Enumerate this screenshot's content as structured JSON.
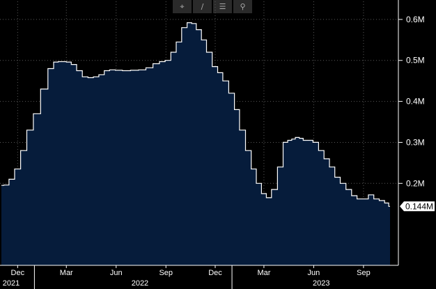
{
  "toolbar": {
    "tools": [
      {
        "name": "crosshair-icon",
        "glyph": "⌖"
      },
      {
        "name": "draw-line-icon",
        "glyph": "∕"
      },
      {
        "name": "legend-list-icon",
        "glyph": "☰"
      },
      {
        "name": "zoom-search-icon",
        "glyph": "⚲"
      }
    ]
  },
  "colors": {
    "background": "#000000",
    "area_fill": "#061c3b",
    "line": "#ffffff",
    "grid": "#5a5a5a",
    "text": "#ffffff"
  },
  "chart_data": {
    "type": "area",
    "x_start": "2021-11-01",
    "x_end": "2023-10-20",
    "ylim": [
      0,
      0.644
    ],
    "grid": true,
    "y_ticks": [
      {
        "value": 0.2,
        "label": "0.2M"
      },
      {
        "value": 0.3,
        "label": "0.3M"
      },
      {
        "value": 0.4,
        "label": "0.4M"
      },
      {
        "value": 0.5,
        "label": "0.5M"
      },
      {
        "value": 0.6,
        "label": "0.6M"
      }
    ],
    "x_ticks": [
      {
        "date": "2021-12-01",
        "label": "Dec"
      },
      {
        "date": "2022-03-01",
        "label": "Mar"
      },
      {
        "date": "2022-06-01",
        "label": "Jun"
      },
      {
        "date": "2022-09-01",
        "label": "Sep"
      },
      {
        "date": "2022-12-01",
        "label": "Dec"
      },
      {
        "date": "2023-03-01",
        "label": "Mar"
      },
      {
        "date": "2023-06-01",
        "label": "Jun"
      },
      {
        "date": "2023-09-01",
        "label": "Sep"
      }
    ],
    "year_labels": [
      {
        "date": "2021-11-15",
        "label": "2021"
      },
      {
        "date": "2022-07-15",
        "label": "2022"
      },
      {
        "date": "2023-06-15",
        "label": "2023"
      }
    ],
    "year_dividers": [
      "2022-01-01",
      "2023-01-01"
    ],
    "last_value_label": "0.144M",
    "series": [
      {
        "x": [
          "2021-11-01",
          "2021-11-10",
          "2021-11-20",
          "2021-12-01",
          "2021-12-12",
          "2021-12-24",
          "2022-01-05",
          "2022-01-20",
          "2022-02-01",
          "2022-02-10",
          "2022-02-18",
          "2022-02-25",
          "2022-03-05",
          "2022-03-15",
          "2022-03-25",
          "2022-04-05",
          "2022-04-15",
          "2022-04-25",
          "2022-05-05",
          "2022-05-15",
          "2022-05-25",
          "2022-06-05",
          "2022-06-20",
          "2022-07-05",
          "2022-07-20",
          "2022-08-01",
          "2022-08-15",
          "2022-08-25",
          "2022-09-05",
          "2022-09-15",
          "2022-09-25",
          "2022-10-05",
          "2022-10-15",
          "2022-10-22",
          "2022-11-01",
          "2022-11-10",
          "2022-11-20",
          "2022-12-01",
          "2022-12-10",
          "2022-12-20",
          "2023-01-01",
          "2023-01-10",
          "2023-01-20",
          "2023-02-01",
          "2023-02-10",
          "2023-02-20",
          "2023-03-01",
          "2023-03-10",
          "2023-03-20",
          "2023-04-01",
          "2023-04-10",
          "2023-04-18",
          "2023-04-25",
          "2023-05-01",
          "2023-05-10",
          "2023-05-15",
          "2023-05-25",
          "2023-06-05",
          "2023-06-15",
          "2023-06-25",
          "2023-07-05",
          "2023-07-15",
          "2023-07-25",
          "2023-08-05",
          "2023-08-15",
          "2023-08-25",
          "2023-09-05",
          "2023-09-15",
          "2023-09-25",
          "2023-10-05",
          "2023-10-15",
          "2023-10-20"
        ],
        "values": [
          0.195,
          0.196,
          0.21,
          0.235,
          0.28,
          0.33,
          0.37,
          0.43,
          0.48,
          0.496,
          0.497,
          0.497,
          0.496,
          0.49,
          0.475,
          0.46,
          0.458,
          0.46,
          0.465,
          0.475,
          0.477,
          0.476,
          0.475,
          0.476,
          0.477,
          0.482,
          0.492,
          0.497,
          0.5,
          0.52,
          0.545,
          0.58,
          0.592,
          0.59,
          0.575,
          0.55,
          0.52,
          0.485,
          0.47,
          0.45,
          0.42,
          0.38,
          0.33,
          0.28,
          0.235,
          0.2,
          0.175,
          0.165,
          0.185,
          0.24,
          0.3,
          0.305,
          0.308,
          0.312,
          0.31,
          0.305,
          0.305,
          0.3,
          0.28,
          0.26,
          0.24,
          0.215,
          0.2,
          0.185,
          0.17,
          0.162,
          0.162,
          0.172,
          0.162,
          0.158,
          0.152,
          0.144
        ]
      }
    ]
  }
}
